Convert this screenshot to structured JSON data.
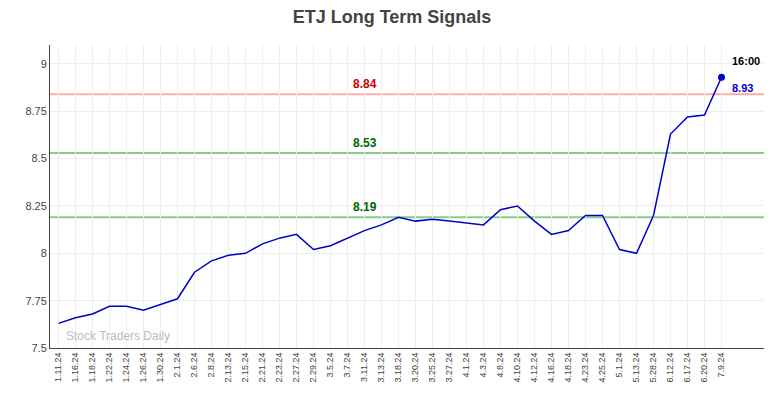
{
  "chart_data": {
    "type": "line",
    "title": "ETJ Long Term Signals",
    "categories": [
      "1.11.24",
      "1.16.24",
      "1.18.24",
      "1.22.24",
      "1.24.24",
      "1.26.24",
      "1.30.24",
      "2.1.24",
      "2.6.24",
      "2.8.24",
      "2.13.24",
      "2.15.24",
      "2.21.24",
      "2.23.24",
      "2.27.24",
      "2.29.24",
      "3.5.24",
      "3.7.24",
      "3.11.24",
      "3.13.24",
      "3.18.24",
      "3.20.24",
      "3.25.24",
      "3.27.24",
      "4.1.24",
      "4.3.24",
      "4.8.24",
      "4.10.24",
      "4.12.24",
      "4.16.24",
      "4.18.24",
      "4.23.24",
      "4.25.24",
      "5.1.24",
      "5.13.24",
      "5.28.24",
      "6.12.24",
      "6.17.24",
      "6.20.24",
      "7.9.24"
    ],
    "values": [
      7.63,
      7.66,
      7.68,
      7.72,
      7.72,
      7.7,
      7.73,
      7.76,
      7.9,
      7.96,
      7.99,
      8.0,
      8.05,
      8.08,
      8.1,
      8.02,
      8.04,
      8.08,
      8.12,
      8.15,
      8.19,
      8.17,
      8.18,
      8.17,
      8.16,
      8.15,
      8.23,
      8.25,
      8.17,
      8.1,
      8.12,
      8.2,
      8.2,
      8.02,
      8.0,
      8.2,
      8.63,
      8.72,
      8.73,
      8.93
    ],
    "color": "#0000cc",
    "ylim": [
      7.5,
      9.1
    ],
    "yticks": [
      7.5,
      7.75,
      8,
      8.25,
      8.5,
      8.75,
      9
    ],
    "grid": true,
    "reference_lines": [
      {
        "value": 8.84,
        "color": "#ffaaaa",
        "label": "8.84",
        "label_color": "#cc0000"
      },
      {
        "value": 8.53,
        "color": "#88cc88",
        "label": "8.53",
        "label_color": "#006600"
      },
      {
        "value": 8.19,
        "color": "#88cc88",
        "label": "8.19",
        "label_color": "#006600"
      }
    ],
    "annotations": [
      {
        "text": "16:00",
        "category": "7.9.24",
        "color": "#000000"
      },
      {
        "text": "8.93",
        "category": "7.9.24",
        "value": 8.93,
        "color": "#0000cc",
        "marker": "circle"
      },
      {
        "text": "Stock Traders Daily",
        "color": "#bbbbbb"
      }
    ]
  }
}
